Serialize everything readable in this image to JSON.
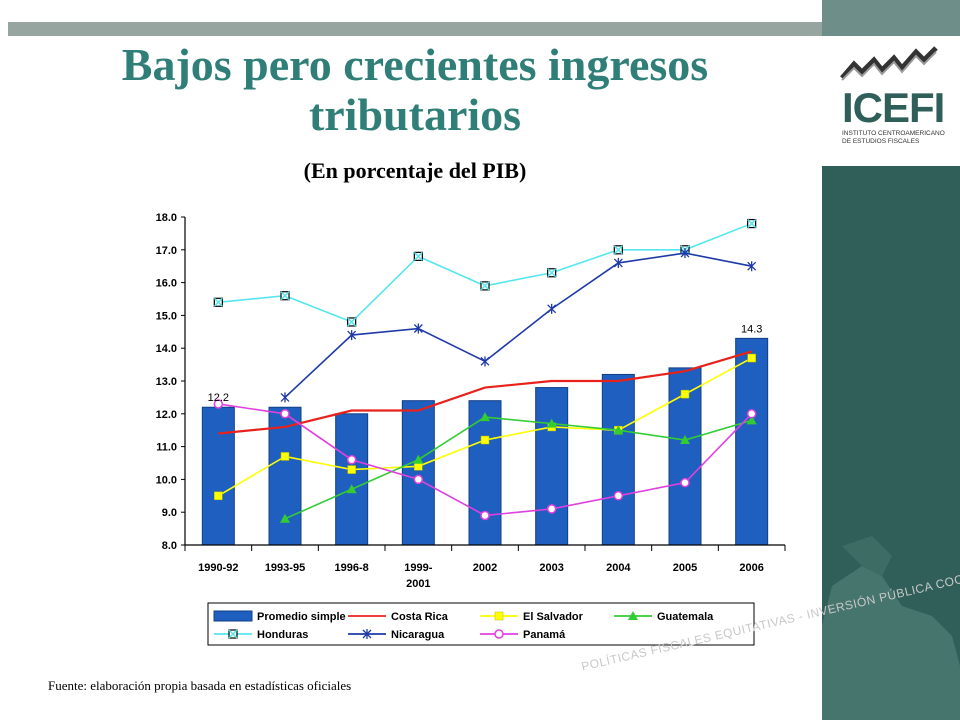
{
  "header": {
    "title": "Bajos pero crecientes ingresos tributarios",
    "subtitle": "(En porcentaje del PIB)"
  },
  "logo": {
    "name": "ICEFI",
    "tagline_1": "INSTITUTO CENTROAMERICANO",
    "tagline_2": "DE ESTUDIOS FISCALES"
  },
  "footer": {
    "source": "Fuente: elaboración propia basada en estadísticas oficiales",
    "watermark": "POLÍTICAS FISCALES EQUITATIVAS - INVERSIÓN PÚBLICA COOPARTICIPAC"
  },
  "colors": {
    "title": "#2f7f78",
    "bars": "#1f5fbf",
    "costa_rica": "#e8221b",
    "el_salvador": "#ffff00",
    "guatemala": "#33cc33",
    "honduras": "#55e6ee",
    "nicaragua": "#1e3aa8",
    "panama": "#e040e0"
  },
  "chart_data": {
    "type": "bar",
    "categories": [
      "1990-92",
      "1993-95",
      "1996-8",
      "1999-\n2001",
      "2002",
      "2003",
      "2004",
      "2005",
      "2006"
    ],
    "ylim": [
      8.0,
      18.0
    ],
    "yticks": [
      "8.0",
      "9.0",
      "10.0",
      "11.0",
      "12.0",
      "13.0",
      "14.0",
      "15.0",
      "16.0",
      "17.0",
      "18.0"
    ],
    "grid": false,
    "legend_position": "bottom",
    "series": [
      {
        "name": "Promedio simple",
        "kind": "bar",
        "values": [
          12.2,
          12.2,
          12.0,
          12.4,
          12.4,
          12.8,
          13.2,
          13.4,
          14.3
        ]
      },
      {
        "name": "Costa Rica",
        "kind": "line",
        "marker": "none",
        "values": [
          11.4,
          11.6,
          12.1,
          12.1,
          12.8,
          13.0,
          13.0,
          13.3,
          13.9
        ]
      },
      {
        "name": "El Salvador",
        "kind": "line",
        "marker": "square",
        "values": [
          9.5,
          10.7,
          10.3,
          10.4,
          11.2,
          11.6,
          11.5,
          12.6,
          13.7
        ]
      },
      {
        "name": "Guatemala",
        "kind": "line",
        "marker": "triangle",
        "values": [
          null,
          8.8,
          9.7,
          10.6,
          11.9,
          11.7,
          11.5,
          11.2,
          11.8
        ]
      },
      {
        "name": "Honduras",
        "kind": "line",
        "marker": "x",
        "values": [
          15.4,
          15.6,
          14.8,
          16.8,
          15.9,
          16.3,
          17.0,
          17.0,
          17.8
        ]
      },
      {
        "name": "Nicaragua",
        "kind": "line",
        "marker": "star",
        "values": [
          null,
          12.5,
          14.4,
          14.6,
          13.6,
          15.2,
          16.6,
          16.9,
          16.5
        ]
      },
      {
        "name": "Panamá",
        "kind": "line",
        "marker": "circle",
        "values": [
          12.3,
          12.0,
          10.6,
          10.0,
          8.9,
          9.1,
          9.5,
          9.9,
          12.0
        ]
      }
    ],
    "data_labels": [
      {
        "category": "1990-92",
        "text": "12.2"
      },
      {
        "category": "2006",
        "text": "14.3"
      }
    ]
  }
}
